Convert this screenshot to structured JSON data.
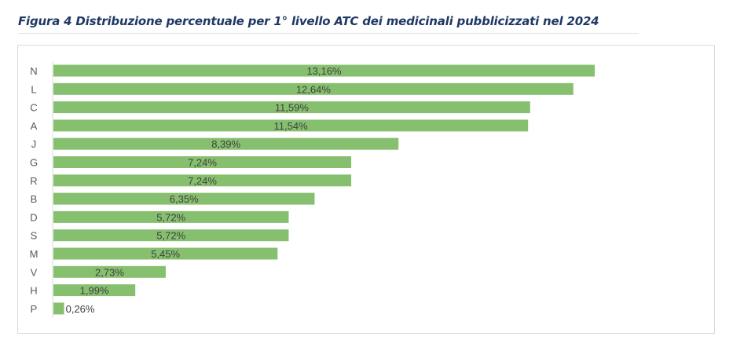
{
  "figure": {
    "caption": "Figura 4 Distribuzione percentuale per 1° livello ATC dei medicinali pubblicizzati nel 2024"
  },
  "chart_data": {
    "type": "bar",
    "orientation": "horizontal",
    "title": "",
    "xlabel": "",
    "ylabel": "",
    "categories": [
      "N",
      "L",
      "C",
      "A",
      "J",
      "G",
      "R",
      "B",
      "D",
      "S",
      "M",
      "V",
      "H",
      "P"
    ],
    "values": [
      13.16,
      12.64,
      11.59,
      11.54,
      8.39,
      7.24,
      7.24,
      6.35,
      5.72,
      5.72,
      5.45,
      2.73,
      1.99,
      0.26
    ],
    "value_labels": [
      "13,16%",
      "12,64%",
      "11,59%",
      "11,54%",
      "8,39%",
      "7,24%",
      "7,24%",
      "6,35%",
      "5,72%",
      "5,72%",
      "5,45%",
      "2,73%",
      "1,99%",
      "0,26%"
    ],
    "xlim": [
      0,
      13.16
    ],
    "grid": false,
    "legend": "none",
    "bar_color": "#86c06f",
    "axis_color": "#d9d9d9"
  }
}
